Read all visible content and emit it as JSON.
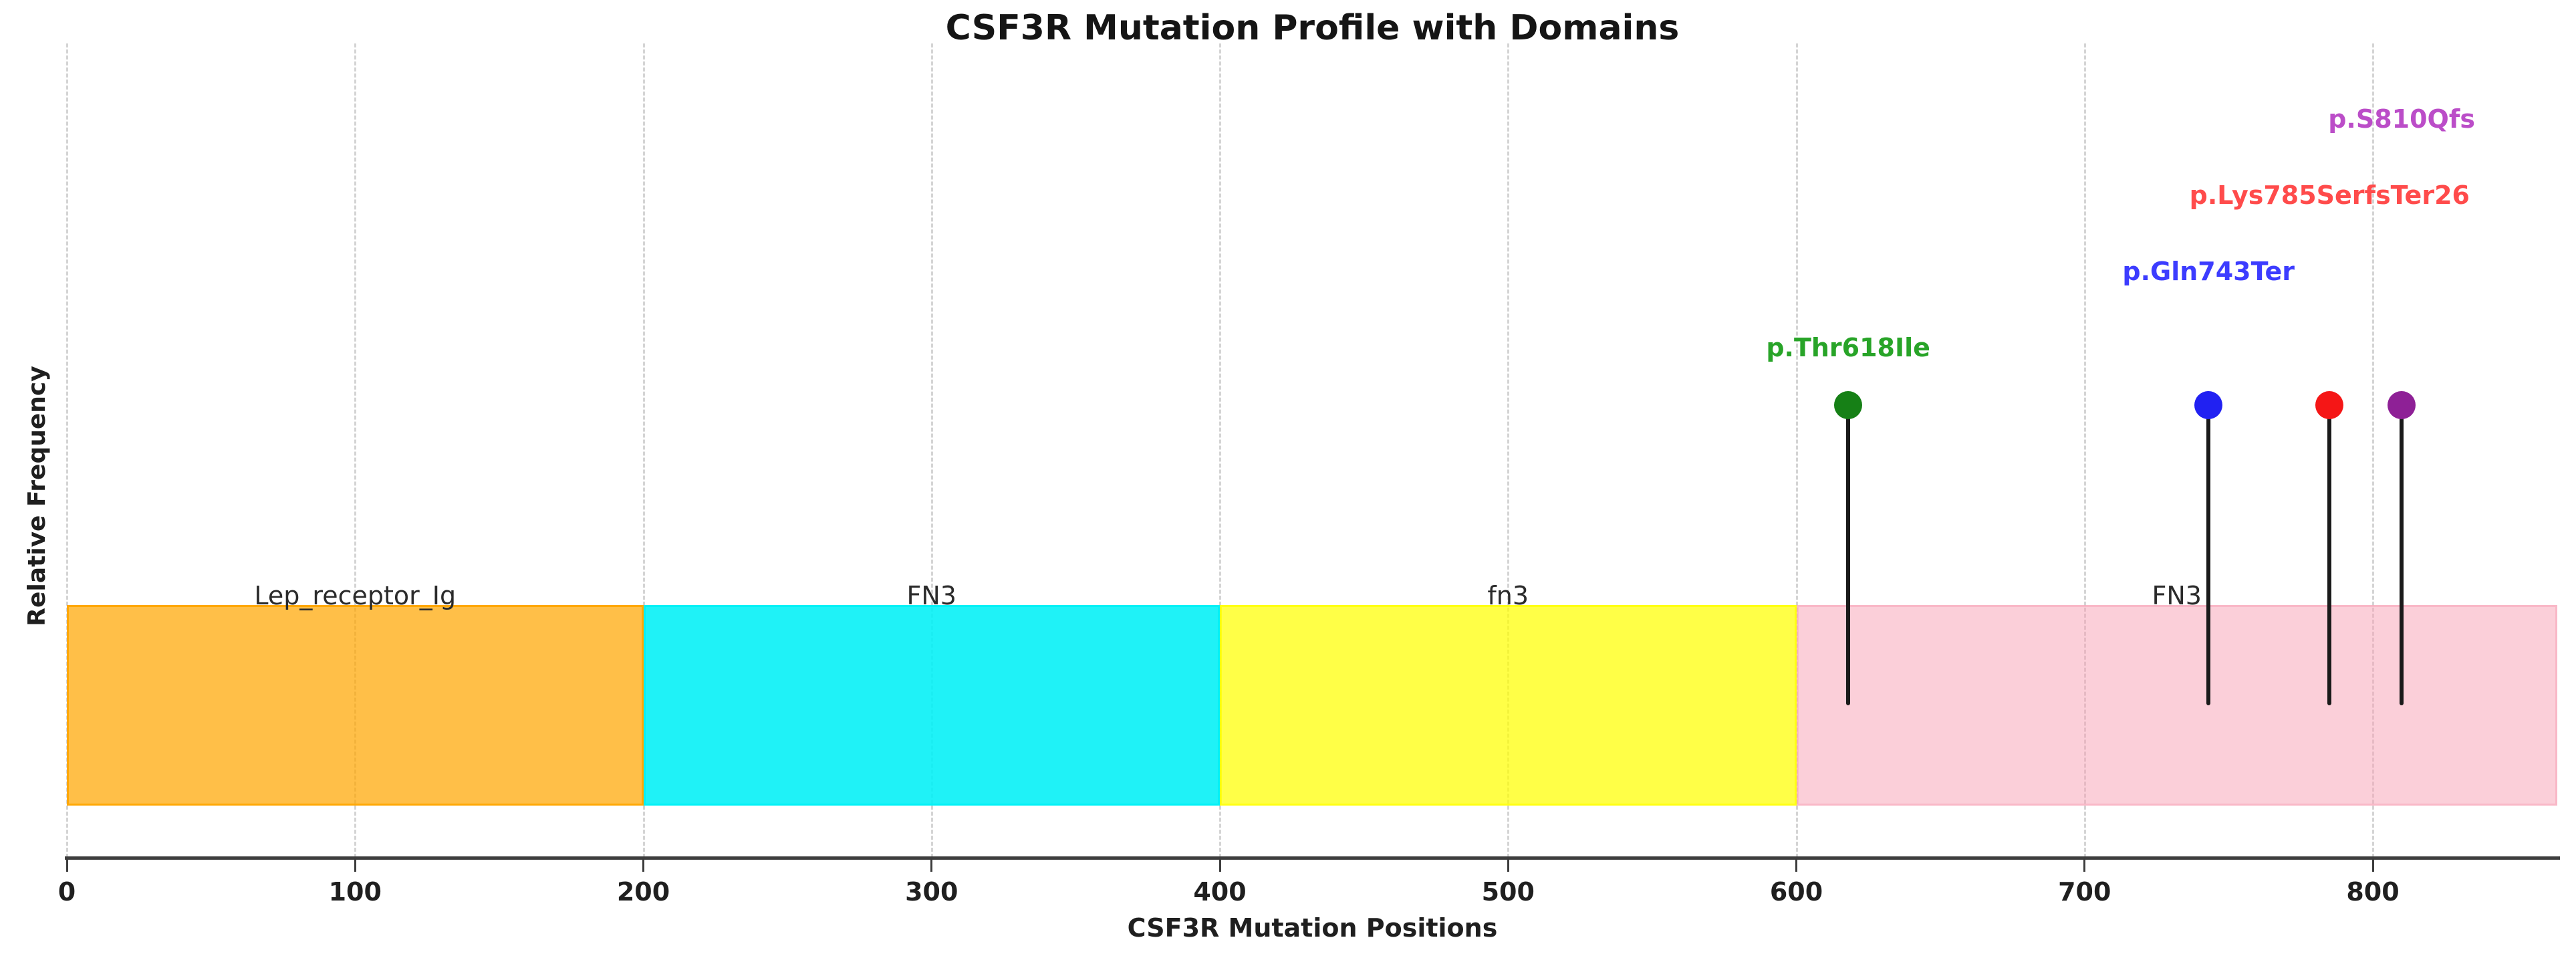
{
  "figure": {
    "title": "CSF3R Mutation Profile with Domains"
  },
  "axes": {
    "x_label": "CSF3R Mutation Positions",
    "y_label": "Relative Frequency",
    "x_tick_labels": [
      "0",
      "100",
      "200",
      "300",
      "400",
      "500",
      "600",
      "700",
      "800"
    ]
  },
  "chart_data": {
    "type": "lollipop",
    "title": "CSF3R Mutation Profile with Domains",
    "xlabel": "CSF3R Mutation Positions",
    "ylabel": "Relative Frequency",
    "xlim": [
      0,
      864
    ],
    "x_ticks": [
      0,
      100,
      200,
      300,
      400,
      500,
      600,
      700,
      800
    ],
    "grid": {
      "axis": "x",
      "style": "dashed",
      "color": "#d4d4d4"
    },
    "legend": "none",
    "domains": [
      {
        "name": "Lep_receptor_Ig",
        "start": 0,
        "end": 200,
        "fill": "rgba(255,166,2,0.72)",
        "edge": "rgba(255,166,2,0.95)"
      },
      {
        "name": "FN3",
        "start": 200,
        "end": 400,
        "fill": "rgba(0,240,246,0.88)",
        "edge": "rgba(0,240,246,0.88)"
      },
      {
        "name": "fn3",
        "start": 400,
        "end": 600,
        "fill": "rgba(255,255,0,0.72)",
        "edge": "rgba(255,255,0,0.72)"
      },
      {
        "name": "FN3",
        "start": 600,
        "end": 864,
        "fill": "rgba(247,163,183,0.52)",
        "edge": "rgba(247,163,183,0.52)"
      }
    ],
    "mutations": [
      {
        "label": "p.Thr618Ile",
        "position": 618,
        "relative_frequency": 1.0,
        "marker_color": "#168016",
        "label_color": "#28a428"
      },
      {
        "label": "p.Gln743Ter",
        "position": 743,
        "relative_frequency": 1.0,
        "marker_color": "#2121f2",
        "label_color": "#3c3cff"
      },
      {
        "label": "p.Lys785SerfsTer26",
        "position": 785,
        "relative_frequency": 1.0,
        "marker_color": "#f51616",
        "label_color": "#ff4b4b"
      },
      {
        "label": "p.S810Qfs",
        "position": 810,
        "relative_frequency": 1.0,
        "marker_color": "#8e2096",
        "label_color": "#bb4dc8"
      }
    ],
    "stem_color": "#1a1a1a",
    "axis_color": "#3d3d3d",
    "domain_label_color": "#2b2b2b",
    "tick_label_color": "#1f1f1f"
  }
}
